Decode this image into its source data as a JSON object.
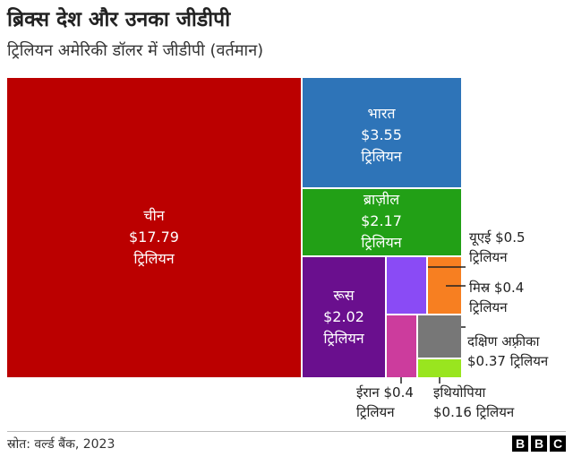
{
  "title": "ब्रिक्स देश और उनका जीडीपी",
  "subtitle": "ट्रिलियन अमेरिकी डॉलर में जीडीपी (वर्तमान)",
  "source": "स्रोत: वर्ल्ड बैंक, 2023",
  "logo": [
    "B",
    "B",
    "C"
  ],
  "chart_data": {
    "type": "treemap",
    "unit": "ट्रिलियन",
    "items": [
      {
        "name": "चीन",
        "value_label": "$17.79",
        "unit_label": "ट्रिलियन",
        "value": 17.79,
        "color": "#bb0000"
      },
      {
        "name": "भारत",
        "value_label": "$3.55",
        "unit_label": "ट्रिलियन",
        "value": 3.55,
        "color": "#2e74b8"
      },
      {
        "name": "ब्राज़ील",
        "value_label": "$2.17",
        "unit_label": "ट्रिलियन",
        "value": 2.17,
        "color": "#22a016"
      },
      {
        "name": "रूस",
        "value_label": "$2.02",
        "unit_label": "ट्रिलियन",
        "value": 2.02,
        "color": "#6a0f8e"
      },
      {
        "name": "यूएई",
        "value_label": "$0.5",
        "unit_label": "ट्रिलियन",
        "value": 0.5,
        "color": "#8a4bf5"
      },
      {
        "name": "मिस्र",
        "value_label": "$0.4",
        "unit_label": "ट्रिलियन",
        "value": 0.4,
        "color": "#f77f21"
      },
      {
        "name": "ईरान",
        "value_label": "$0.4",
        "unit_label": "ट्रिलियन",
        "value": 0.4,
        "color": "#cc3c9d"
      },
      {
        "name": "दक्षिण अफ़्रीका",
        "value_label": "$0.37",
        "unit_label": "ट्रिलियन",
        "value": 0.37,
        "color": "#777777"
      },
      {
        "name": "इथियोपिया",
        "value_label": "$0.16",
        "unit_label": "ट्रिलियन",
        "value": 0.16,
        "color": "#99e51f"
      }
    ]
  }
}
